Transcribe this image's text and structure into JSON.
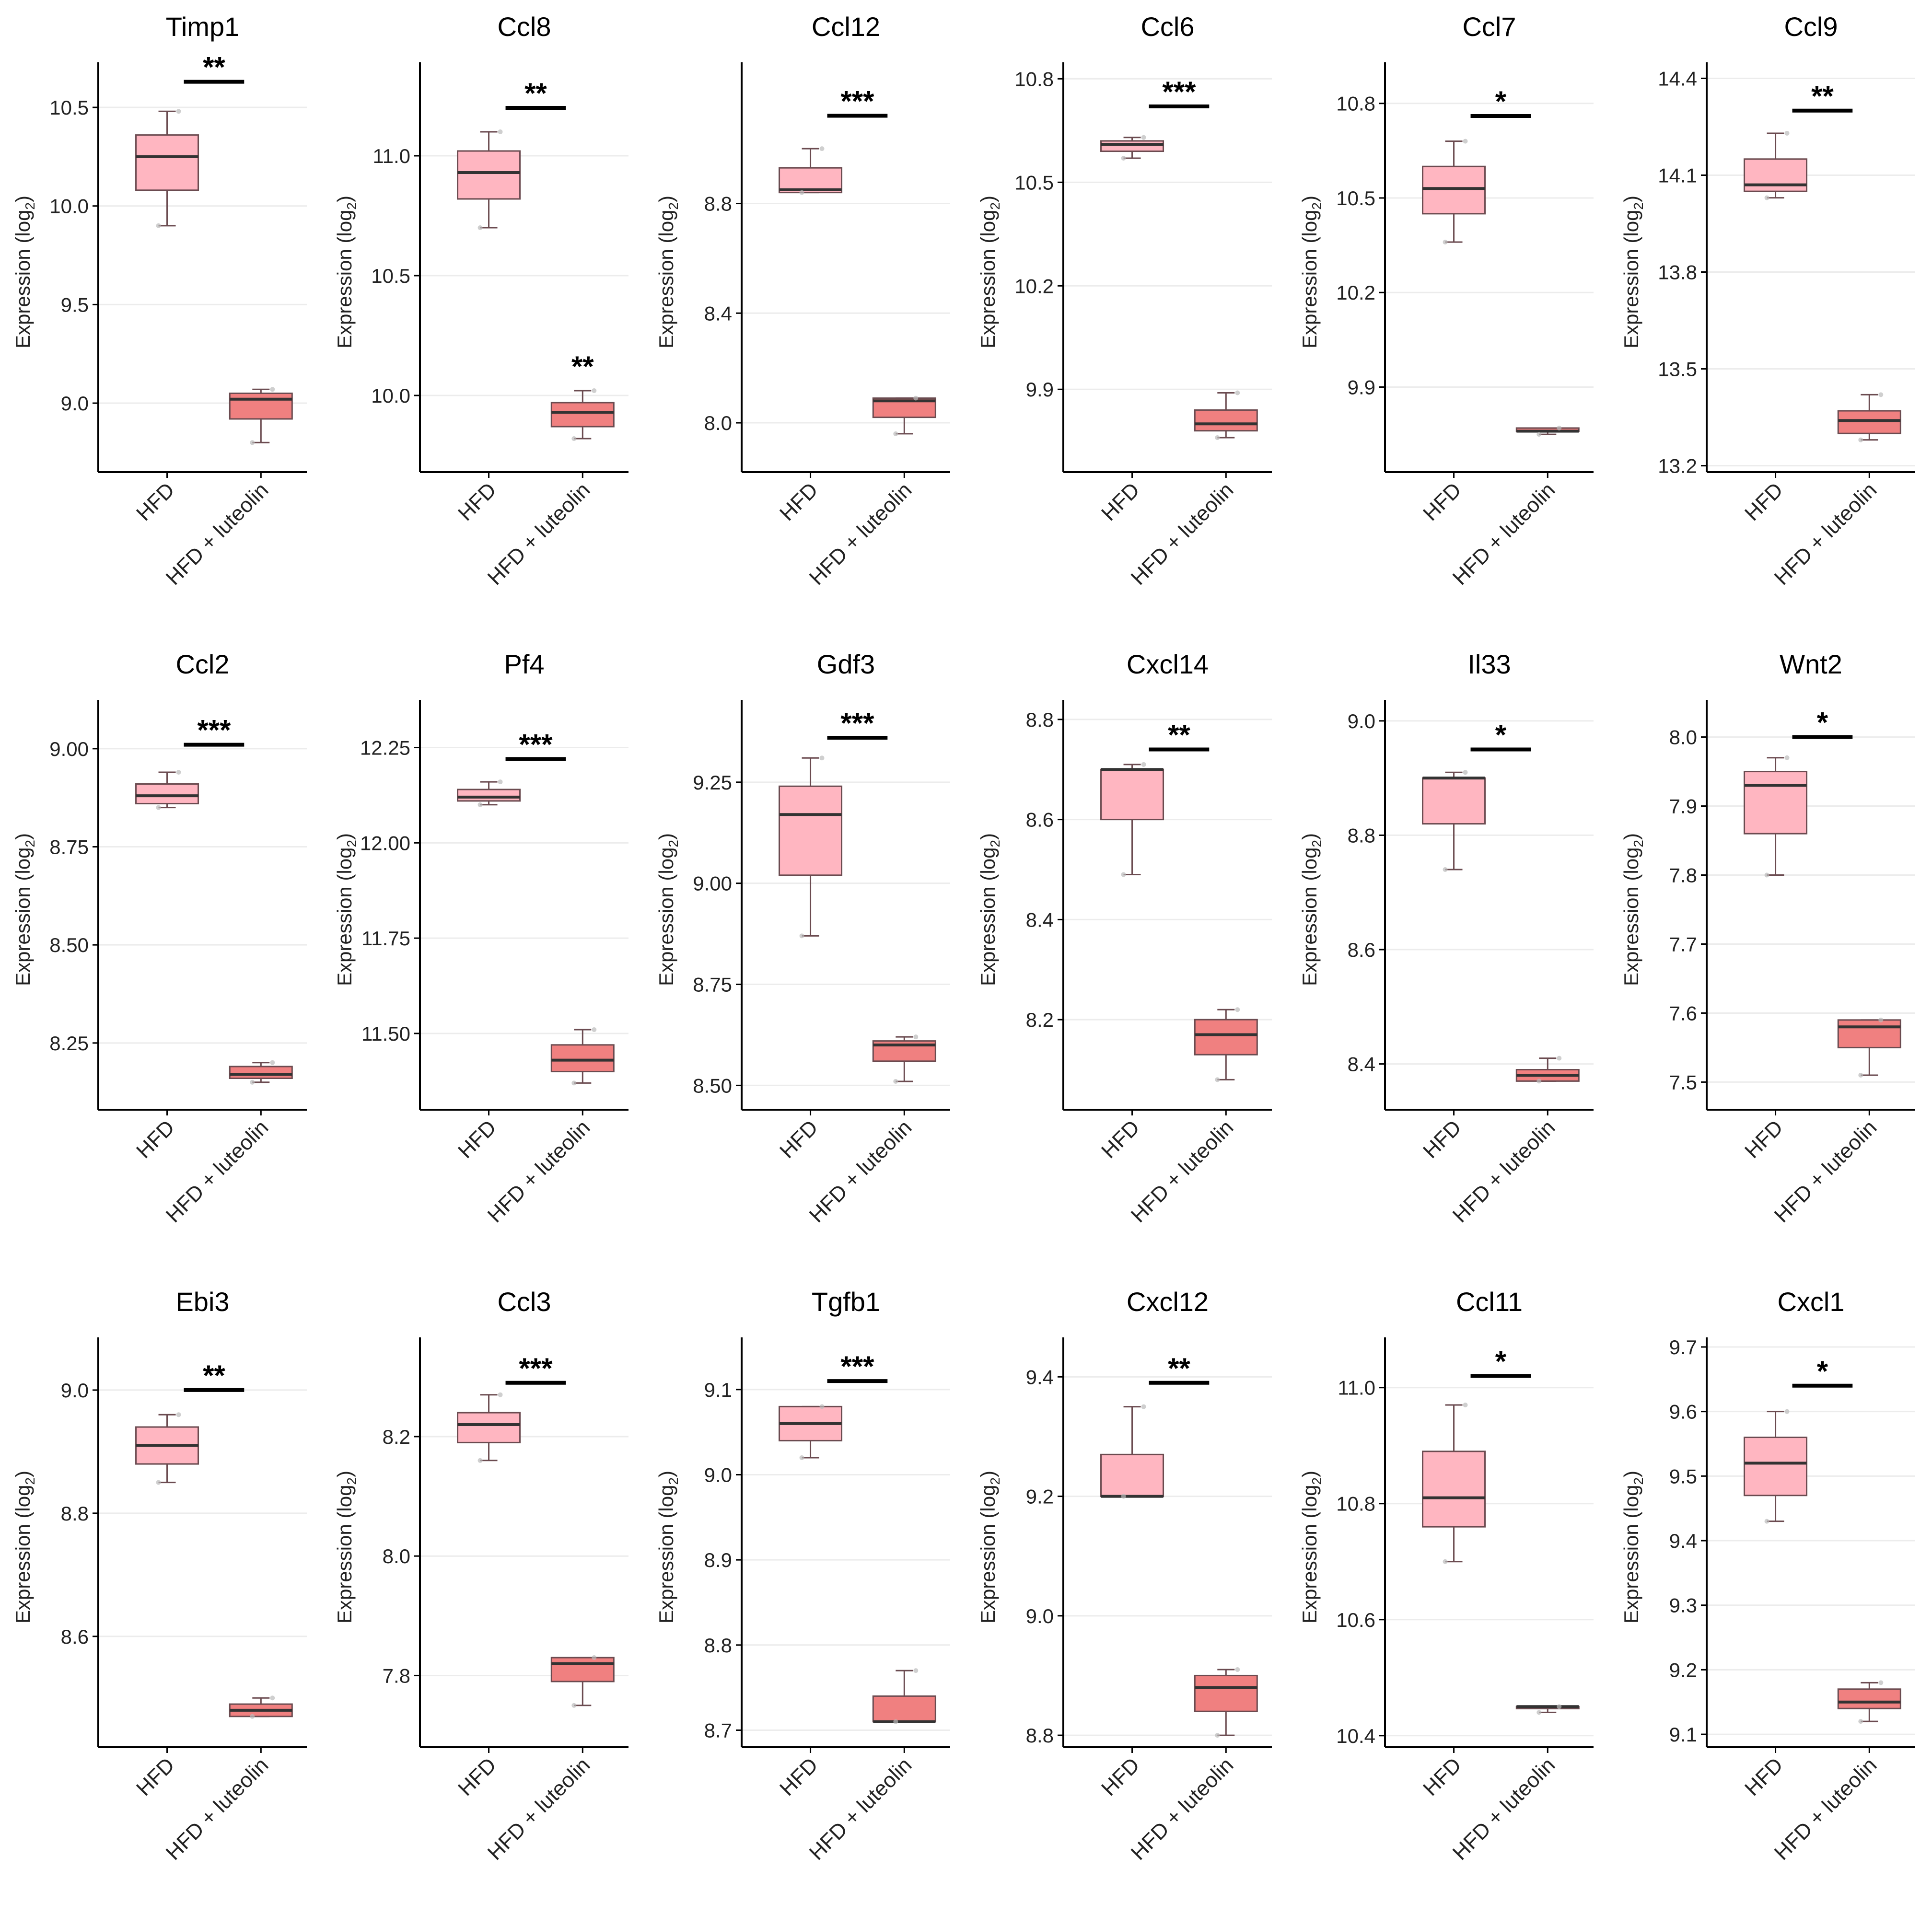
{
  "colors": {
    "hfd_fill": "#ffb6c1",
    "luteolin_fill": "#f08080",
    "box_stroke": "#6b4b50",
    "axis": "#000000",
    "gridline": "#ececec"
  },
  "ylabel_main": "Expression (log",
  "ylabel_sub": "2",
  "ylabel_close": ")",
  "chart_data": [
    {
      "type": "box",
      "title": "Timp1",
      "categories": [
        "HFD",
        "HFD + luteolin"
      ],
      "ylim": [
        8.65,
        10.68
      ],
      "yticks": [
        9.0,
        9.5,
        10.0,
        10.5
      ],
      "tick_labels": [
        "9.0",
        "9.5",
        "10.0",
        "10.5"
      ],
      "series": [
        {
          "name": "HFD",
          "min": 9.9,
          "q1": 10.08,
          "median": 10.25,
          "q3": 10.36,
          "max": 10.48
        },
        {
          "name": "HFD + luteolin",
          "min": 8.8,
          "q1": 8.92,
          "median": 9.02,
          "q3": 9.05,
          "max": 9.07
        }
      ],
      "significance": [
        {
          "label": "**",
          "y": 10.63,
          "over": "both"
        }
      ]
    },
    {
      "type": "box",
      "title": "Ccl8",
      "categories": [
        "HFD",
        "HFD + luteolin"
      ],
      "ylim": [
        9.68,
        11.35
      ],
      "yticks": [
        10.0,
        10.5,
        11.0
      ],
      "tick_labels": [
        "10.0",
        "10.5",
        "11.0"
      ],
      "series": [
        {
          "name": "HFD",
          "min": 10.7,
          "q1": 10.82,
          "median": 10.93,
          "q3": 11.02,
          "max": 11.1
        },
        {
          "name": "HFD + luteolin",
          "min": 9.82,
          "q1": 9.87,
          "median": 9.93,
          "q3": 9.97,
          "max": 10.02
        }
      ],
      "significance": [
        {
          "label": "**",
          "y": 11.2,
          "over": "both"
        },
        {
          "label": "**",
          "y": 10.12,
          "over": "HFD + luteolin"
        }
      ]
    },
    {
      "type": "box",
      "title": "Ccl12",
      "categories": [
        "HFD",
        "HFD + luteolin"
      ],
      "ylim": [
        7.82,
        9.28
      ],
      "yticks": [
        8.0,
        8.4,
        8.8
      ],
      "tick_labels": [
        "8.0",
        "8.4",
        "8.8"
      ],
      "series": [
        {
          "name": "HFD",
          "min": 8.84,
          "q1": 8.84,
          "median": 8.85,
          "q3": 8.93,
          "max": 9.0
        },
        {
          "name": "HFD + luteolin",
          "min": 7.96,
          "q1": 8.02,
          "median": 8.08,
          "q3": 8.09,
          "max": 8.09
        }
      ],
      "significance": [
        {
          "label": "***",
          "y": 9.12,
          "over": "both"
        }
      ]
    },
    {
      "type": "box",
      "title": "Ccl6",
      "categories": [
        "HFD",
        "HFD + luteolin"
      ],
      "ylim": [
        9.66,
        10.82
      ],
      "yticks": [
        9.9,
        10.2,
        10.5,
        10.8
      ],
      "tick_labels": [
        "9.9",
        "10.2",
        "10.5",
        "10.8"
      ],
      "series": [
        {
          "name": "HFD",
          "min": 10.57,
          "q1": 10.59,
          "median": 10.61,
          "q3": 10.62,
          "max": 10.63
        },
        {
          "name": "HFD + luteolin",
          "min": 9.76,
          "q1": 9.78,
          "median": 9.8,
          "q3": 9.84,
          "max": 9.89
        }
      ],
      "significance": [
        {
          "label": "***",
          "y": 10.72,
          "over": "both"
        }
      ]
    },
    {
      "type": "box",
      "title": "Ccl7",
      "categories": [
        "HFD",
        "HFD + luteolin"
      ],
      "ylim": [
        9.63,
        10.9
      ],
      "yticks": [
        9.9,
        10.2,
        10.5,
        10.8
      ],
      "tick_labels": [
        "9.9",
        "10.2",
        "10.5",
        "10.8"
      ],
      "series": [
        {
          "name": "HFD",
          "min": 10.36,
          "q1": 10.45,
          "median": 10.53,
          "q3": 10.6,
          "max": 10.68
        },
        {
          "name": "HFD + luteolin",
          "min": 9.75,
          "q1": 9.76,
          "median": 9.76,
          "q3": 9.77,
          "max": 9.77
        }
      ],
      "significance": [
        {
          "label": "*",
          "y": 10.76,
          "over": "both"
        }
      ]
    },
    {
      "type": "box",
      "title": "Ccl9",
      "categories": [
        "HFD",
        "HFD + luteolin"
      ],
      "ylim": [
        13.18,
        14.42
      ],
      "yticks": [
        13.2,
        13.5,
        13.8,
        14.1,
        14.4
      ],
      "tick_labels": [
        "13.2",
        "13.5",
        "13.8",
        "14.1",
        "14.4"
      ],
      "series": [
        {
          "name": "HFD",
          "min": 14.03,
          "q1": 14.05,
          "median": 14.07,
          "q3": 14.15,
          "max": 14.23
        },
        {
          "name": "HFD + luteolin",
          "min": 13.28,
          "q1": 13.3,
          "median": 13.34,
          "q3": 13.37,
          "max": 13.42
        }
      ],
      "significance": [
        {
          "label": "**",
          "y": 14.3,
          "over": "both"
        }
      ]
    },
    {
      "type": "box",
      "title": "Ccl2",
      "categories": [
        "HFD",
        "HFD + luteolin"
      ],
      "ylim": [
        8.08,
        9.1
      ],
      "yticks": [
        8.25,
        8.5,
        8.75,
        9.0
      ],
      "tick_labels": [
        "8.25",
        "8.50",
        "8.75",
        "9.00"
      ],
      "series": [
        {
          "name": "HFD",
          "min": 8.85,
          "q1": 8.86,
          "median": 8.88,
          "q3": 8.91,
          "max": 8.94
        },
        {
          "name": "HFD + luteolin",
          "min": 8.15,
          "q1": 8.16,
          "median": 8.17,
          "q3": 8.19,
          "max": 8.2
        }
      ],
      "significance": [
        {
          "label": "***",
          "y": 9.01,
          "over": "both"
        }
      ]
    },
    {
      "type": "box",
      "title": "Pf4",
      "categories": [
        "HFD",
        "HFD + luteolin"
      ],
      "ylim": [
        11.3,
        12.35
      ],
      "yticks": [
        11.5,
        11.75,
        12.0,
        12.25
      ],
      "tick_labels": [
        "11.50",
        "11.75",
        "12.00",
        "12.25"
      ],
      "series": [
        {
          "name": "HFD",
          "min": 12.1,
          "q1": 12.11,
          "median": 12.12,
          "q3": 12.14,
          "max": 12.16
        },
        {
          "name": "HFD + luteolin",
          "min": 11.37,
          "q1": 11.4,
          "median": 11.43,
          "q3": 11.47,
          "max": 11.51
        }
      ],
      "significance": [
        {
          "label": "***",
          "y": 12.22,
          "over": "both"
        }
      ]
    },
    {
      "type": "box",
      "title": "Gdf3",
      "categories": [
        "HFD",
        "HFD + luteolin"
      ],
      "ylim": [
        8.44,
        9.43
      ],
      "yticks": [
        8.5,
        8.75,
        9.0,
        9.25
      ],
      "tick_labels": [
        "8.50",
        "8.75",
        "9.00",
        "9.25"
      ],
      "series": [
        {
          "name": "HFD",
          "min": 8.87,
          "q1": 9.02,
          "median": 9.17,
          "q3": 9.24,
          "max": 9.31
        },
        {
          "name": "HFD + luteolin",
          "min": 8.51,
          "q1": 8.56,
          "median": 8.6,
          "q3": 8.61,
          "max": 8.62
        }
      ],
      "significance": [
        {
          "label": "***",
          "y": 9.36,
          "over": "both"
        }
      ]
    },
    {
      "type": "box",
      "title": "Cxcl14",
      "categories": [
        "HFD",
        "HFD + luteolin"
      ],
      "ylim": [
        8.02,
        8.82
      ],
      "yticks": [
        8.2,
        8.4,
        8.6,
        8.8
      ],
      "tick_labels": [
        "8.2",
        "8.4",
        "8.6",
        "8.8"
      ],
      "series": [
        {
          "name": "HFD",
          "min": 8.49,
          "q1": 8.6,
          "median": 8.7,
          "q3": 8.7,
          "max": 8.71
        },
        {
          "name": "HFD + luteolin",
          "min": 8.08,
          "q1": 8.13,
          "median": 8.17,
          "q3": 8.2,
          "max": 8.22
        }
      ],
      "significance": [
        {
          "label": "**",
          "y": 8.74,
          "over": "both"
        }
      ]
    },
    {
      "type": "box",
      "title": "Il33",
      "categories": [
        "HFD",
        "HFD + luteolin"
      ],
      "ylim": [
        8.32,
        9.02
      ],
      "yticks": [
        8.4,
        8.6,
        8.8,
        9.0
      ],
      "tick_labels": [
        "8.4",
        "8.6",
        "8.8",
        "9.0"
      ],
      "series": [
        {
          "name": "HFD",
          "min": 8.74,
          "q1": 8.82,
          "median": 8.9,
          "q3": 8.9,
          "max": 8.91
        },
        {
          "name": "HFD + luteolin",
          "min": 8.37,
          "q1": 8.37,
          "median": 8.38,
          "q3": 8.39,
          "max": 8.41
        }
      ],
      "significance": [
        {
          "label": "*",
          "y": 8.95,
          "over": "both"
        }
      ]
    },
    {
      "type": "box",
      "title": "Wnt2",
      "categories": [
        "HFD",
        "HFD + luteolin"
      ],
      "ylim": [
        7.46,
        8.04
      ],
      "yticks": [
        7.5,
        7.6,
        7.7,
        7.8,
        7.9,
        8.0
      ],
      "tick_labels": [
        "7.5",
        "7.6",
        "7.7",
        "7.8",
        "7.9",
        "8.0"
      ],
      "series": [
        {
          "name": "HFD",
          "min": 7.8,
          "q1": 7.86,
          "median": 7.93,
          "q3": 7.95,
          "max": 7.97
        },
        {
          "name": "HFD + luteolin",
          "min": 7.51,
          "q1": 7.55,
          "median": 7.58,
          "q3": 7.59,
          "max": 7.59
        }
      ],
      "significance": [
        {
          "label": "*",
          "y": 8.0,
          "over": "both"
        }
      ]
    },
    {
      "type": "box",
      "title": "Ebi3",
      "categories": [
        "HFD",
        "HFD + luteolin"
      ],
      "ylim": [
        8.42,
        9.07
      ],
      "yticks": [
        8.6,
        8.8,
        9.0
      ],
      "tick_labels": [
        "8.6",
        "8.8",
        "9.0"
      ],
      "series": [
        {
          "name": "HFD",
          "min": 8.85,
          "q1": 8.88,
          "median": 8.91,
          "q3": 8.94,
          "max": 8.96
        },
        {
          "name": "HFD + luteolin",
          "min": 8.47,
          "q1": 8.47,
          "median": 8.48,
          "q3": 8.49,
          "max": 8.5
        }
      ],
      "significance": [
        {
          "label": "**",
          "y": 9.0,
          "over": "both"
        }
      ]
    },
    {
      "type": "box",
      "title": "Ccl3",
      "categories": [
        "HFD",
        "HFD + luteolin"
      ],
      "ylim": [
        7.68,
        8.35
      ],
      "yticks": [
        7.8,
        8.0,
        8.2
      ],
      "tick_labels": [
        "7.8",
        "8.0",
        "8.2"
      ],
      "series": [
        {
          "name": "HFD",
          "min": 8.16,
          "q1": 8.19,
          "median": 8.22,
          "q3": 8.24,
          "max": 8.27
        },
        {
          "name": "HFD + luteolin",
          "min": 7.75,
          "q1": 7.79,
          "median": 7.82,
          "q3": 7.83,
          "max": 7.83
        }
      ],
      "significance": [
        {
          "label": "***",
          "y": 8.29,
          "over": "both"
        }
      ]
    },
    {
      "type": "box",
      "title": "Tgfb1",
      "categories": [
        "HFD",
        "HFD + luteolin"
      ],
      "ylim": [
        8.68,
        9.15
      ],
      "yticks": [
        8.7,
        8.8,
        8.9,
        9.0,
        9.1
      ],
      "tick_labels": [
        "8.7",
        "8.8",
        "8.9",
        "9.0",
        "9.1"
      ],
      "series": [
        {
          "name": "HFD",
          "min": 9.02,
          "q1": 9.04,
          "median": 9.06,
          "q3": 9.08,
          "max": 9.08
        },
        {
          "name": "HFD + luteolin",
          "min": 8.71,
          "q1": 8.71,
          "median": 8.71,
          "q3": 8.74,
          "max": 8.77
        }
      ],
      "significance": [
        {
          "label": "***",
          "y": 9.11,
          "over": "both"
        }
      ]
    },
    {
      "type": "box",
      "title": "Cxcl12",
      "categories": [
        "HFD",
        "HFD + luteolin"
      ],
      "ylim": [
        8.78,
        9.45
      ],
      "yticks": [
        8.8,
        9.0,
        9.2,
        9.4
      ],
      "tick_labels": [
        "8.8",
        "9.0",
        "9.2",
        "9.4"
      ],
      "series": [
        {
          "name": "HFD",
          "min": 9.2,
          "q1": 9.2,
          "median": 9.2,
          "q3": 9.27,
          "max": 9.35
        },
        {
          "name": "HFD + luteolin",
          "min": 8.8,
          "q1": 8.84,
          "median": 8.88,
          "q3": 8.9,
          "max": 8.91
        }
      ],
      "significance": [
        {
          "label": "**",
          "y": 9.39,
          "over": "both"
        }
      ]
    },
    {
      "type": "box",
      "title": "Ccl11",
      "categories": [
        "HFD",
        "HFD + luteolin"
      ],
      "ylim": [
        10.38,
        11.07
      ],
      "yticks": [
        10.4,
        10.6,
        10.8,
        11.0
      ],
      "tick_labels": [
        "10.4",
        "10.6",
        "10.8",
        "11.0"
      ],
      "series": [
        {
          "name": "HFD",
          "min": 10.7,
          "q1": 10.76,
          "median": 10.81,
          "q3": 10.89,
          "max": 10.97
        },
        {
          "name": "HFD + luteolin",
          "min": 10.44,
          "q1": 10.45,
          "median": 10.45,
          "q3": 10.45,
          "max": 10.45
        }
      ],
      "significance": [
        {
          "label": "*",
          "y": 11.02,
          "over": "both"
        }
      ]
    },
    {
      "type": "box",
      "title": "Cxcl1",
      "categories": [
        "HFD",
        "HFD + luteolin"
      ],
      "ylim": [
        9.08,
        9.7
      ],
      "yticks": [
        9.1,
        9.2,
        9.3,
        9.4,
        9.5,
        9.6,
        9.7
      ],
      "tick_labels": [
        "9.1",
        "9.2",
        "9.3",
        "9.4",
        "9.5",
        "9.6",
        "9.7"
      ],
      "series": [
        {
          "name": "HFD",
          "min": 9.43,
          "q1": 9.47,
          "median": 9.52,
          "q3": 9.56,
          "max": 9.6
        },
        {
          "name": "HFD + luteolin",
          "min": 9.12,
          "q1": 9.14,
          "median": 9.15,
          "q3": 9.17,
          "max": 9.18
        }
      ],
      "significance": [
        {
          "label": "*",
          "y": 9.64,
          "over": "both"
        }
      ]
    }
  ]
}
